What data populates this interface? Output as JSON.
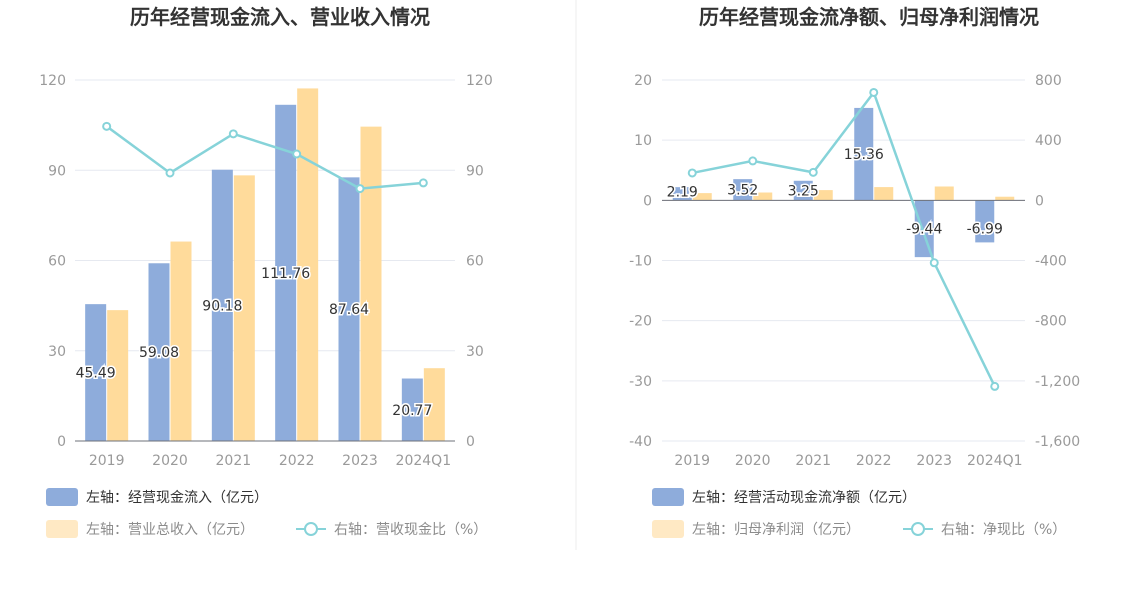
{
  "chart_data": [
    {
      "type": "bar",
      "title": "历年经营现金流入、营业收入情况",
      "categories": [
        "2019",
        "2020",
        "2021",
        "2022",
        "2023",
        "2024Q1"
      ],
      "left_ylim": [
        0,
        120
      ],
      "left_yticks": [
        "0",
        "30",
        "60",
        "90",
        "120"
      ],
      "right_ylim": [
        0,
        120
      ],
      "right_yticks": [
        "0",
        "30",
        "60",
        "90",
        "120"
      ],
      "grid": true,
      "legend_position": "bottom",
      "series": [
        {
          "name": "左轴：经营现金流入（亿元）",
          "type": "bar",
          "axis": "left",
          "color": "#8eacdb",
          "values": [
            45.49,
            59.08,
            90.18,
            111.76,
            87.64,
            20.77
          ],
          "labels": [
            "45.49",
            "59.08",
            "90.18",
            "111.76",
            "87.64",
            "20.77"
          ]
        },
        {
          "name": "左轴：营业总收入（亿元）",
          "type": "bar",
          "axis": "left",
          "color": "#ffdb9b",
          "values": [
            43.5,
            66.3,
            88.3,
            117.2,
            104.5,
            24.2
          ]
        },
        {
          "name": "右轴：营收现金比（%）",
          "type": "line",
          "axis": "right",
          "color": "#86d3d9",
          "values": [
            104.6,
            89.1,
            102.1,
            95.4,
            83.9,
            85.8
          ]
        }
      ]
    },
    {
      "type": "bar",
      "title": "历年经营现金流净额、归母净利润情况",
      "categories": [
        "2019",
        "2020",
        "2021",
        "2022",
        "2023",
        "2024Q1"
      ],
      "left_ylim": [
        -40,
        20
      ],
      "left_yticks": [
        "-40",
        "-30",
        "-20",
        "-10",
        "0",
        "10",
        "20"
      ],
      "right_ylim": [
        -1600,
        800
      ],
      "right_yticks": [
        "-1,600",
        "-1,200",
        "-800",
        "-400",
        "0",
        "400",
        "800"
      ],
      "grid": true,
      "legend_position": "bottom",
      "series": [
        {
          "name": "左轴：经营活动现金流净额（亿元）",
          "type": "bar",
          "axis": "left",
          "color": "#8eacdb",
          "values": [
            2.19,
            3.52,
            3.25,
            15.36,
            -9.44,
            -6.99
          ],
          "labels": [
            "2.19",
            "3.52",
            "3.25",
            "15.36",
            "-9.44",
            "-6.99"
          ]
        },
        {
          "name": "左轴：归母净利润（亿元）",
          "type": "bar",
          "axis": "left",
          "color": "#ffdb9b",
          "values": [
            1.2,
            1.3,
            1.7,
            2.2,
            2.3,
            0.6
          ]
        },
        {
          "name": "右轴：净现比（%）",
          "type": "line",
          "axis": "right",
          "color": "#86d3d9",
          "values": [
            182,
            262,
            186,
            717,
            -415,
            -1237
          ]
        }
      ]
    }
  ]
}
